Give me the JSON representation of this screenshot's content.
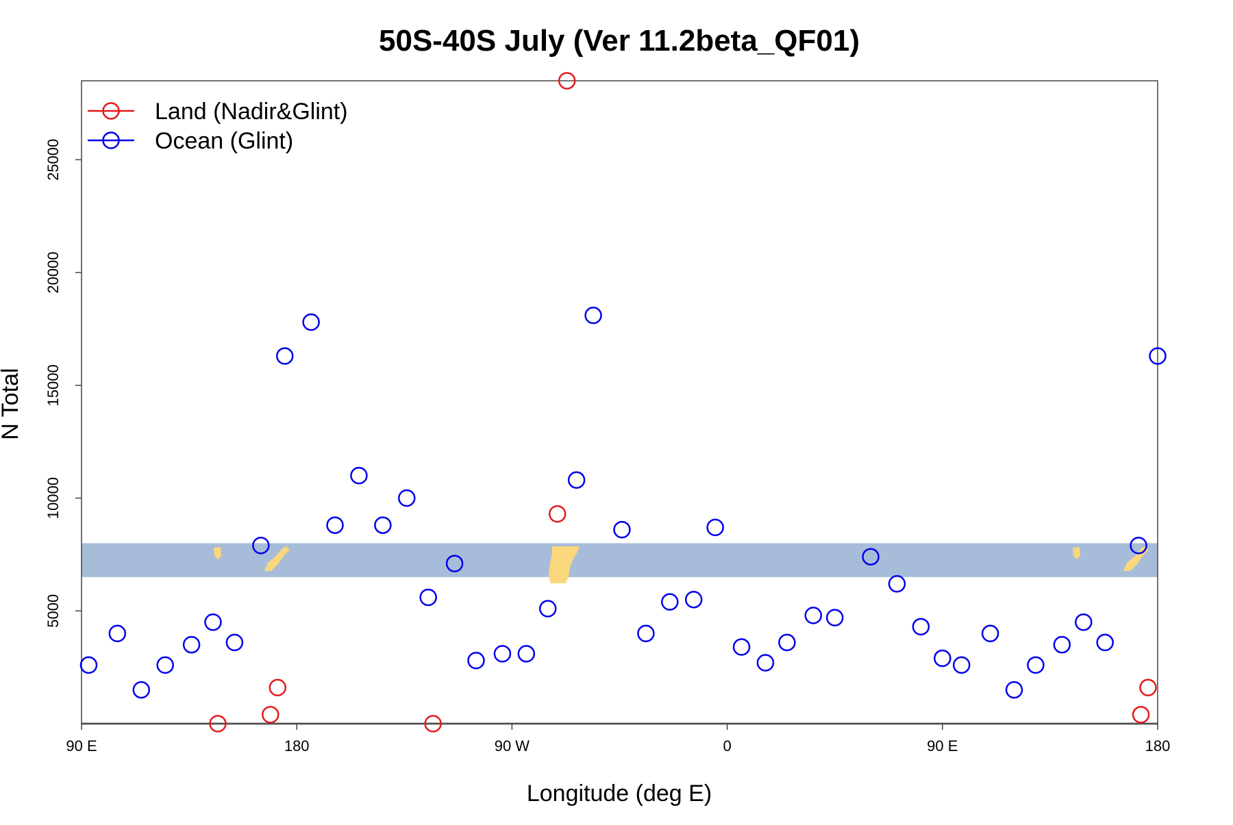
{
  "chart_data": {
    "type": "scatter",
    "title": "50S-40S July (Ver 11.2beta_QF01)",
    "xlabel": "Longitude (deg E)",
    "ylabel": "N Total",
    "xlim": [
      90,
      540
    ],
    "ylim": [
      0,
      28500
    ],
    "x_ticks": [
      {
        "value": 90,
        "label": "90 E"
      },
      {
        "value": 180,
        "label": "180"
      },
      {
        "value": 270,
        "label": "90 W"
      },
      {
        "value": 360,
        "label": "0"
      },
      {
        "value": 450,
        "label": "90 E"
      },
      {
        "value": 540,
        "label": "180"
      }
    ],
    "y_ticks": [
      5000,
      10000,
      15000,
      20000,
      25000
    ],
    "grid": false,
    "legend_position": "top-left",
    "map_band": {
      "y_range": [
        6500,
        8000
      ],
      "ocean_color": "#a7bcd9",
      "land_color": "#f9d77a"
    },
    "series": [
      {
        "name": "Land (Nadir&Glint)",
        "color": "#e41a1c",
        "points": [
          [
            147,
            0
          ],
          [
            169,
            400
          ],
          [
            172,
            1600
          ],
          [
            289,
            9300
          ],
          [
            293,
            28500
          ],
          [
            237,
            0
          ],
          [
            533,
            400
          ],
          [
            536,
            1600
          ]
        ]
      },
      {
        "name": "Ocean (Glint)",
        "color": "#0000ee",
        "points": [
          [
            93,
            2600
          ],
          [
            105,
            4000
          ],
          [
            115,
            1500
          ],
          [
            125,
            2600
          ],
          [
            136,
            3500
          ],
          [
            145,
            4500
          ],
          [
            154,
            3600
          ],
          [
            165,
            7900
          ],
          [
            175,
            16300
          ],
          [
            186,
            17800
          ],
          [
            196,
            8800
          ],
          [
            206,
            11000
          ],
          [
            216,
            8800
          ],
          [
            226,
            10000
          ],
          [
            235,
            5600
          ],
          [
            246,
            7100
          ],
          [
            255,
            2800
          ],
          [
            266,
            3100
          ],
          [
            276,
            3100
          ],
          [
            285,
            5100
          ],
          [
            297,
            10800
          ],
          [
            304,
            18100
          ],
          [
            316,
            8600
          ],
          [
            326,
            4000
          ],
          [
            336,
            5400
          ],
          [
            346,
            5500
          ],
          [
            355,
            8700
          ],
          [
            366,
            3400
          ],
          [
            376,
            2700
          ],
          [
            385,
            3600
          ],
          [
            396,
            4800
          ],
          [
            405,
            4700
          ],
          [
            420,
            7400
          ],
          [
            431,
            6200
          ],
          [
            441,
            4300
          ],
          [
            450,
            2900
          ],
          [
            458,
            2600
          ],
          [
            470,
            4000
          ],
          [
            480,
            1500
          ],
          [
            489,
            2600
          ],
          [
            500,
            3500
          ],
          [
            509,
            4500
          ],
          [
            518,
            3600
          ],
          [
            532,
            7900
          ],
          [
            541,
            16300
          ]
        ]
      }
    ]
  }
}
